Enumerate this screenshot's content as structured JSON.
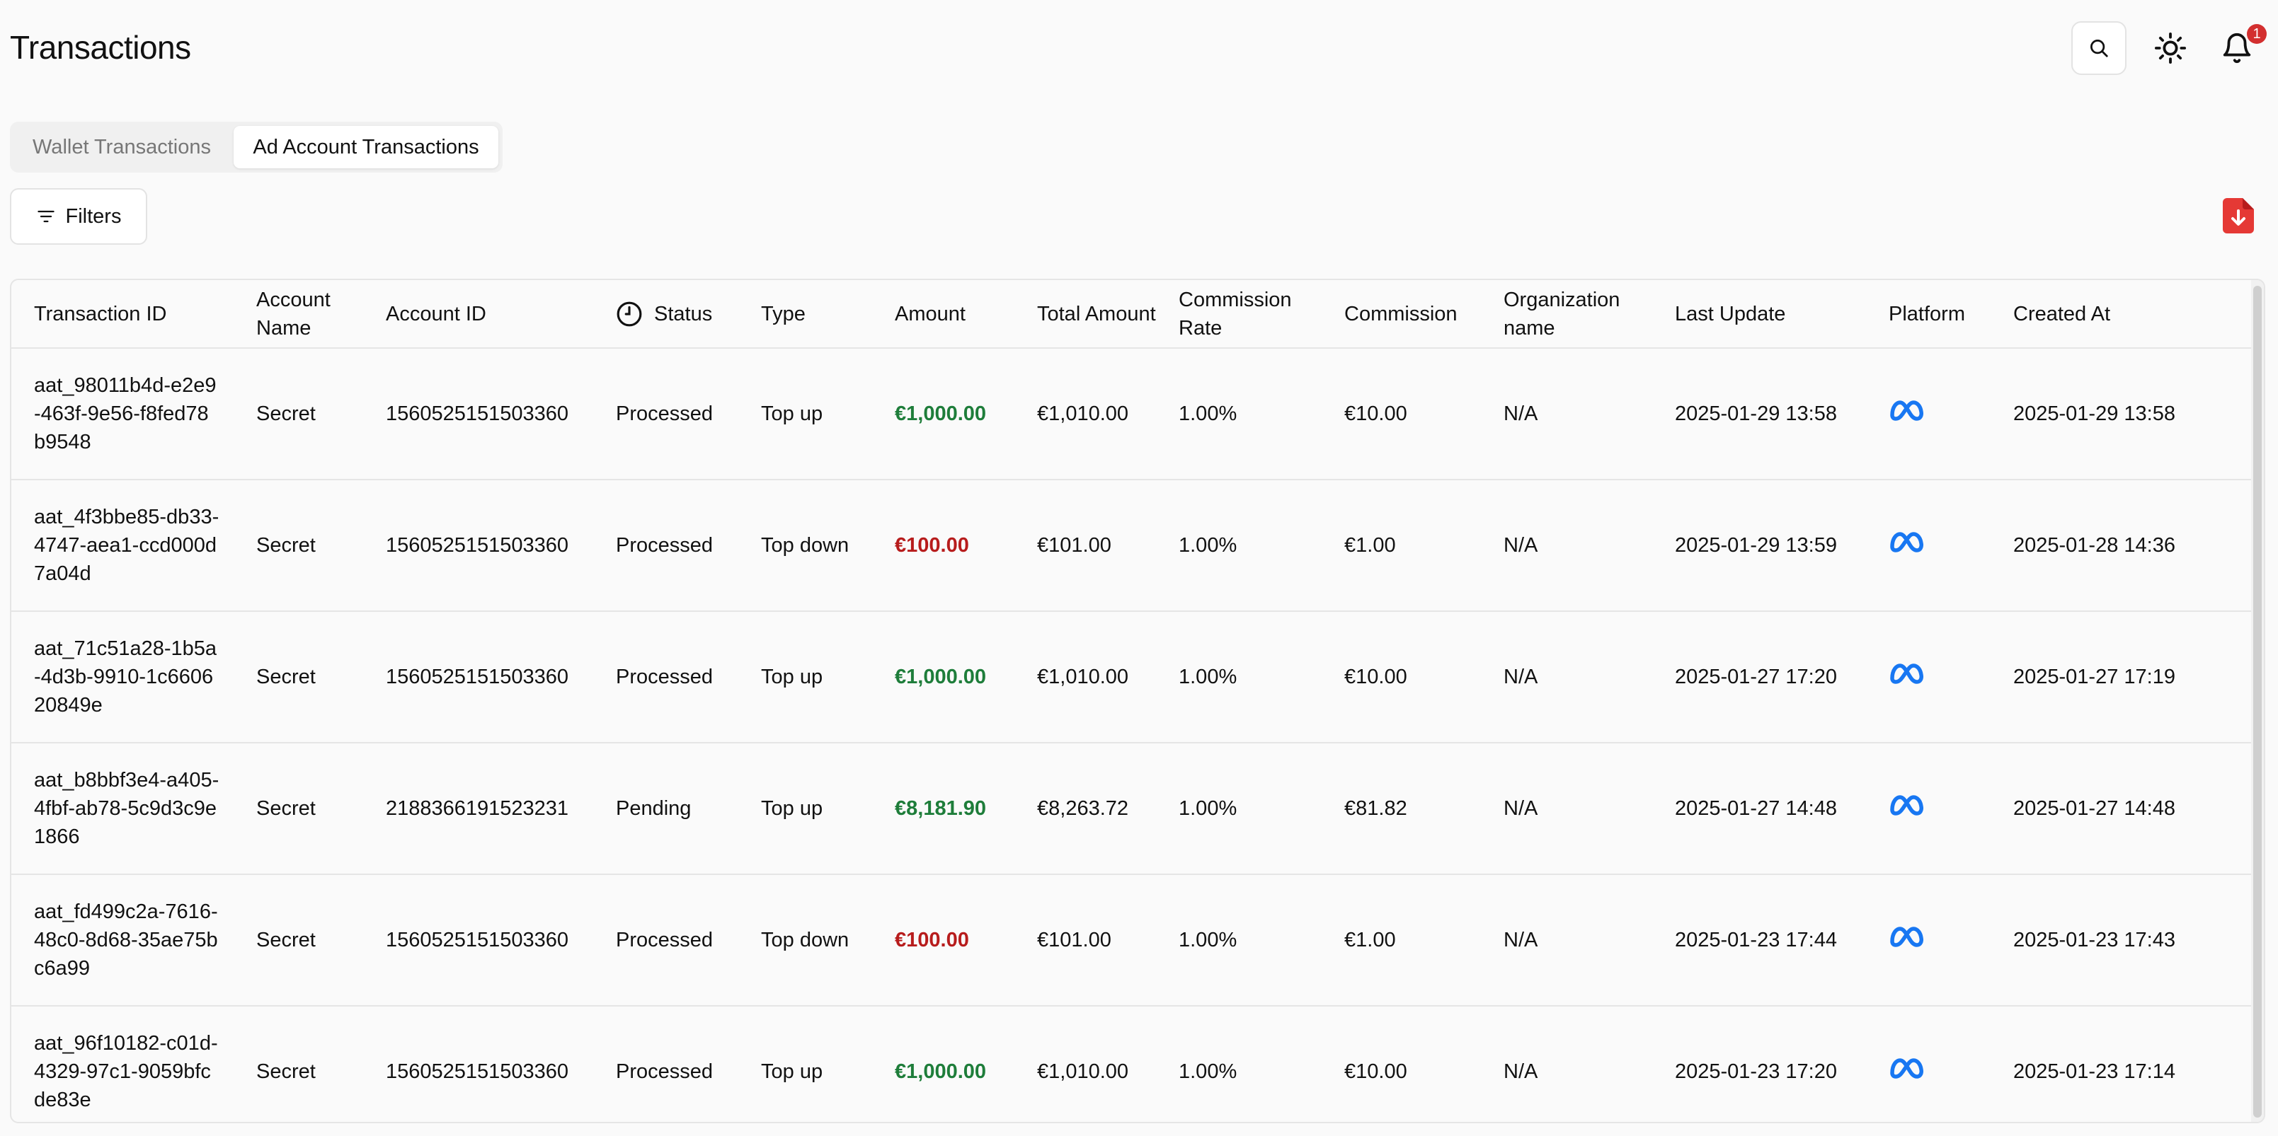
{
  "header": {
    "title": "Transactions",
    "notification_count": "1"
  },
  "tabs": [
    {
      "label": "Wallet Transactions",
      "active": false
    },
    {
      "label": "Ad Account Transactions",
      "active": true
    }
  ],
  "toolbar": {
    "filters_label": "Filters"
  },
  "colors": {
    "positive_amount": "#1e7d3a",
    "negative_amount": "#b71c1c",
    "badge": "#d32f2f",
    "platform_icon": "#1877f2"
  },
  "table": {
    "columns": [
      "Transaction ID",
      "Account Name",
      "Account ID",
      "Status",
      "Type",
      "Amount",
      "Total Amount",
      "Commission Rate",
      "Commission",
      "Organization name",
      "Last Update",
      "Platform",
      "Created At"
    ],
    "rows": [
      {
        "transaction_id": "aat_98011b4d-e2e9-463f-9e56-f8fed78b9548",
        "account_name": "Secret",
        "account_id": "1560525151503360",
        "status": "Processed",
        "type": "Top up",
        "amount": "€1,000.00",
        "total_amount": "€1,010.00",
        "commission_rate": "1.00%",
        "commission": "€10.00",
        "organization": "N/A",
        "last_update": "2025-01-29 13:58",
        "platform": "meta-icon",
        "created_at": "2025-01-29 13:58"
      },
      {
        "transaction_id": "aat_4f3bbe85-db33-4747-aea1-ccd000d7a04d",
        "account_name": "Secret",
        "account_id": "1560525151503360",
        "status": "Processed",
        "type": "Top down",
        "amount": "€100.00",
        "total_amount": "€101.00",
        "commission_rate": "1.00%",
        "commission": "€1.00",
        "organization": "N/A",
        "last_update": "2025-01-29 13:59",
        "platform": "meta-icon",
        "created_at": "2025-01-28 14:36"
      },
      {
        "transaction_id": "aat_71c51a28-1b5a-4d3b-9910-1c660620849e",
        "account_name": "Secret",
        "account_id": "1560525151503360",
        "status": "Processed",
        "type": "Top up",
        "amount": "€1,000.00",
        "total_amount": "€1,010.00",
        "commission_rate": "1.00%",
        "commission": "€10.00",
        "organization": "N/A",
        "last_update": "2025-01-27 17:20",
        "platform": "meta-icon",
        "created_at": "2025-01-27 17:19"
      },
      {
        "transaction_id": "aat_b8bbf3e4-a405-4fbf-ab78-5c9d3c9e1866",
        "account_name": "Secret",
        "account_id": "2188366191523231",
        "status": "Pending",
        "type": "Top up",
        "amount": "€8,181.90",
        "total_amount": "€8,263.72",
        "commission_rate": "1.00%",
        "commission": "€81.82",
        "organization": "N/A",
        "last_update": "2025-01-27 14:48",
        "platform": "meta-icon",
        "created_at": "2025-01-27 14:48"
      },
      {
        "transaction_id": "aat_fd499c2a-7616-48c0-8d68-35ae75bc6a99",
        "account_name": "Secret",
        "account_id": "1560525151503360",
        "status": "Processed",
        "type": "Top down",
        "amount": "€100.00",
        "total_amount": "€101.00",
        "commission_rate": "1.00%",
        "commission": "€1.00",
        "organization": "N/A",
        "last_update": "2025-01-23 17:44",
        "platform": "meta-icon",
        "created_at": "2025-01-23 17:43"
      },
      {
        "transaction_id": "aat_96f10182-c01d-4329-97c1-9059bfcde83e",
        "account_name": "Secret",
        "account_id": "1560525151503360",
        "status": "Processed",
        "type": "Top up",
        "amount": "€1,000.00",
        "total_amount": "€1,010.00",
        "commission_rate": "1.00%",
        "commission": "€10.00",
        "organization": "N/A",
        "last_update": "2025-01-23 17:20",
        "platform": "meta-icon",
        "created_at": "2025-01-23 17:14"
      }
    ]
  }
}
